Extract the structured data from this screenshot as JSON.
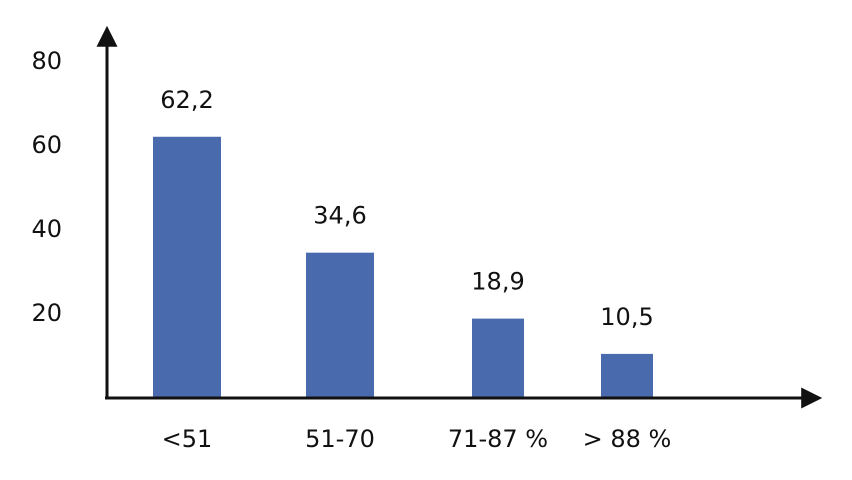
{
  "chart_data": {
    "type": "bar",
    "categories": [
      "<51",
      "51-70",
      "71-87 %",
      "> 88 %"
    ],
    "values": [
      62.2,
      34.6,
      18.9,
      10.5
    ],
    "value_labels": [
      "62,2",
      "34,6",
      "18,9",
      "10,5"
    ],
    "color": "#4a6aae",
    "ylim": [
      0,
      85
    ],
    "yticks": [
      20,
      40,
      60,
      80
    ],
    "grid": false
  }
}
